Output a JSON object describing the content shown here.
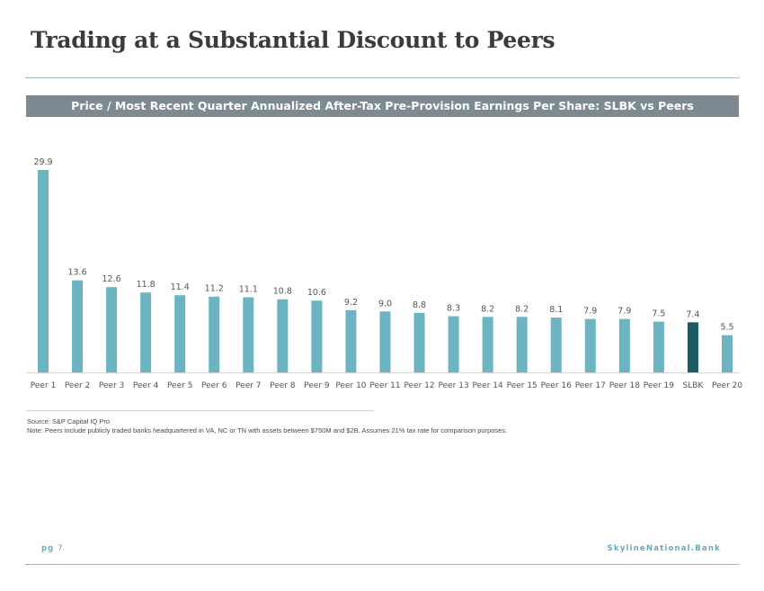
{
  "page": {
    "title": "Trading at a Substantial Discount to Peers",
    "banner": "Price / Most Recent Quarter Annualized After-Tax Pre-Provision Earnings Per Share: SLBK vs Peers",
    "source": "Source: S&P Capital IQ Pro",
    "note": "Note: Peers include publicly traded banks headquartered in VA, NC or TN with assets between $750M and $2B. Assumes 21% tax rate for comparison purposes.",
    "page_label": "pg",
    "page_number": "7",
    "brand": "SkylineNational.Bank"
  },
  "colors": {
    "peer_bar": "#6cb4c2",
    "highlight_bar": "#1d5b64",
    "banner": "#7d8a91",
    "accent": "#6aa9bb"
  },
  "chart_data": {
    "type": "bar",
    "title": "Price / Most Recent Quarter Annualized After-Tax Pre-Provision Earnings Per Share: SLBK vs Peers",
    "categories": [
      "Peer 1",
      "Peer 2",
      "Peer 3",
      "Peer 4",
      "Peer 5",
      "Peer 6",
      "Peer 7",
      "Peer 8",
      "Peer 9",
      "Peer 10",
      "Peer 11",
      "Peer 12",
      "Peer 13",
      "Peer 14",
      "Peer 15",
      "Peer 16",
      "Peer 17",
      "Peer 18",
      "Peer 19",
      "SLBK",
      "Peer 20"
    ],
    "values": [
      29.9,
      13.6,
      12.6,
      11.8,
      11.4,
      11.2,
      11.1,
      10.8,
      10.6,
      9.2,
      9.0,
      8.8,
      8.3,
      8.2,
      8.2,
      8.1,
      7.9,
      7.9,
      7.5,
      7.4,
      5.5
    ],
    "value_labels": [
      "29.9",
      "13.6",
      "12.6",
      "11.8",
      "11.4",
      "11.2",
      "11.1",
      "10.8",
      "10.6",
      "9.2",
      "9.0",
      "8.8",
      "8.3",
      "8.2",
      "8.2",
      "8.1",
      "7.9",
      "7.9",
      "7.5",
      "7.4",
      "5.5"
    ],
    "highlight": "SLBK",
    "ylim": [
      0,
      29.9
    ],
    "xlabel": "",
    "ylabel": "",
    "grid": false,
    "legend": "none"
  }
}
